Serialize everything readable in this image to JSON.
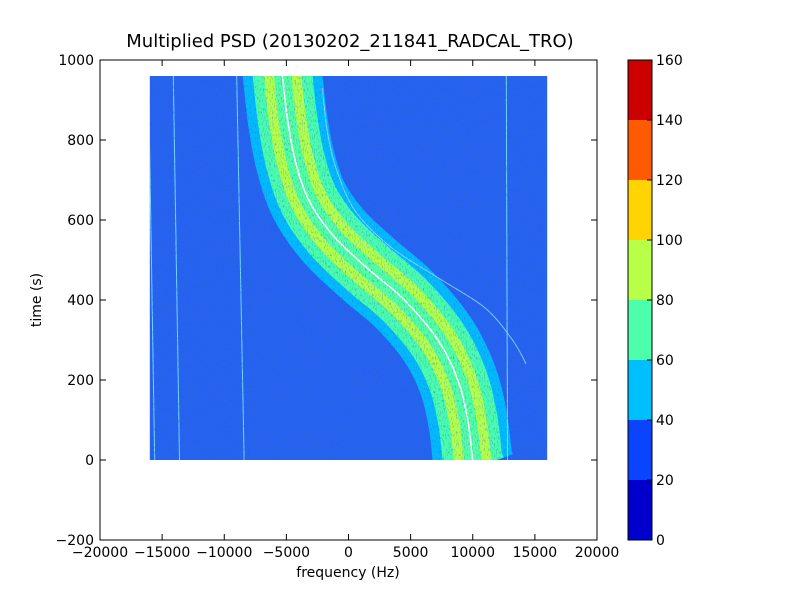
{
  "chart_data": {
    "type": "heatmap",
    "title": "Multiplied PSD (20130202_211841_RADCAL_TRO)",
    "xlabel": "frequency (Hz)",
    "ylabel": "time (s)",
    "xlim": [
      -20000,
      20000
    ],
    "ylim": [
      -200,
      1000
    ],
    "x_ticks": [
      "−20000",
      "−15000",
      "−10000",
      "−5000",
      "0",
      "5000",
      "10000",
      "15000",
      "20000"
    ],
    "y_ticks": [
      "−200",
      "0",
      "200",
      "400",
      "600",
      "800",
      "1000"
    ],
    "data_extent": {
      "x": [
        -16000,
        16000
      ],
      "y": [
        0,
        960
      ]
    },
    "grid": false,
    "colormap": "jet",
    "colorbar": {
      "min": 0,
      "max": 160,
      "ticks": [
        "0",
        "20",
        "40",
        "60",
        "80",
        "100",
        "120",
        "140",
        "160"
      ],
      "levels": [
        {
          "from": 0,
          "to": 20,
          "color": "#0000cd"
        },
        {
          "from": 20,
          "to": 40,
          "color": "#0a44ff"
        },
        {
          "from": 40,
          "to": 60,
          "color": "#00bfff"
        },
        {
          "from": 60,
          "to": 80,
          "color": "#4dffaa"
        },
        {
          "from": 80,
          "to": 100,
          "color": "#b8ff47"
        },
        {
          "from": 100,
          "to": 120,
          "color": "#ffd400"
        },
        {
          "from": 120,
          "to": 140,
          "color": "#ff5a00"
        },
        {
          "from": 140,
          "to": 160,
          "color": "#cd0000"
        }
      ]
    },
    "background_level_color": "#2563f0",
    "main_trace": {
      "description_points_time_s": [
        0,
        100,
        200,
        300,
        400,
        480,
        560,
        650,
        750,
        850,
        930
      ],
      "description_points_freq_hz": [
        10000,
        9600,
        8800,
        7200,
        4500,
        1500,
        -1200,
        -3200,
        -4300,
        -4900,
        -5200
      ],
      "band_widths_hz": {
        "outer": 3200,
        "middle": 2400,
        "inner": 1500,
        "core": 700
      }
    },
    "secondary_trace": {
      "time_s": [
        240,
        300,
        380,
        450,
        530,
        620,
        720,
        820,
        930
      ],
      "freq_hz": [
        14300,
        13200,
        11000,
        7500,
        3500,
        600,
        -900,
        -1700,
        -2100
      ]
    },
    "vertical_lines": [
      {
        "freq_top_hz": -16100,
        "freq_bottom_hz": -15600
      },
      {
        "freq_top_hz": -14100,
        "freq_bottom_hz": -13600
      },
      {
        "freq_top_hz": -9000,
        "freq_bottom_hz": -8400
      },
      {
        "freq_top_hz": 12700,
        "freq_bottom_hz": 12800
      }
    ]
  }
}
